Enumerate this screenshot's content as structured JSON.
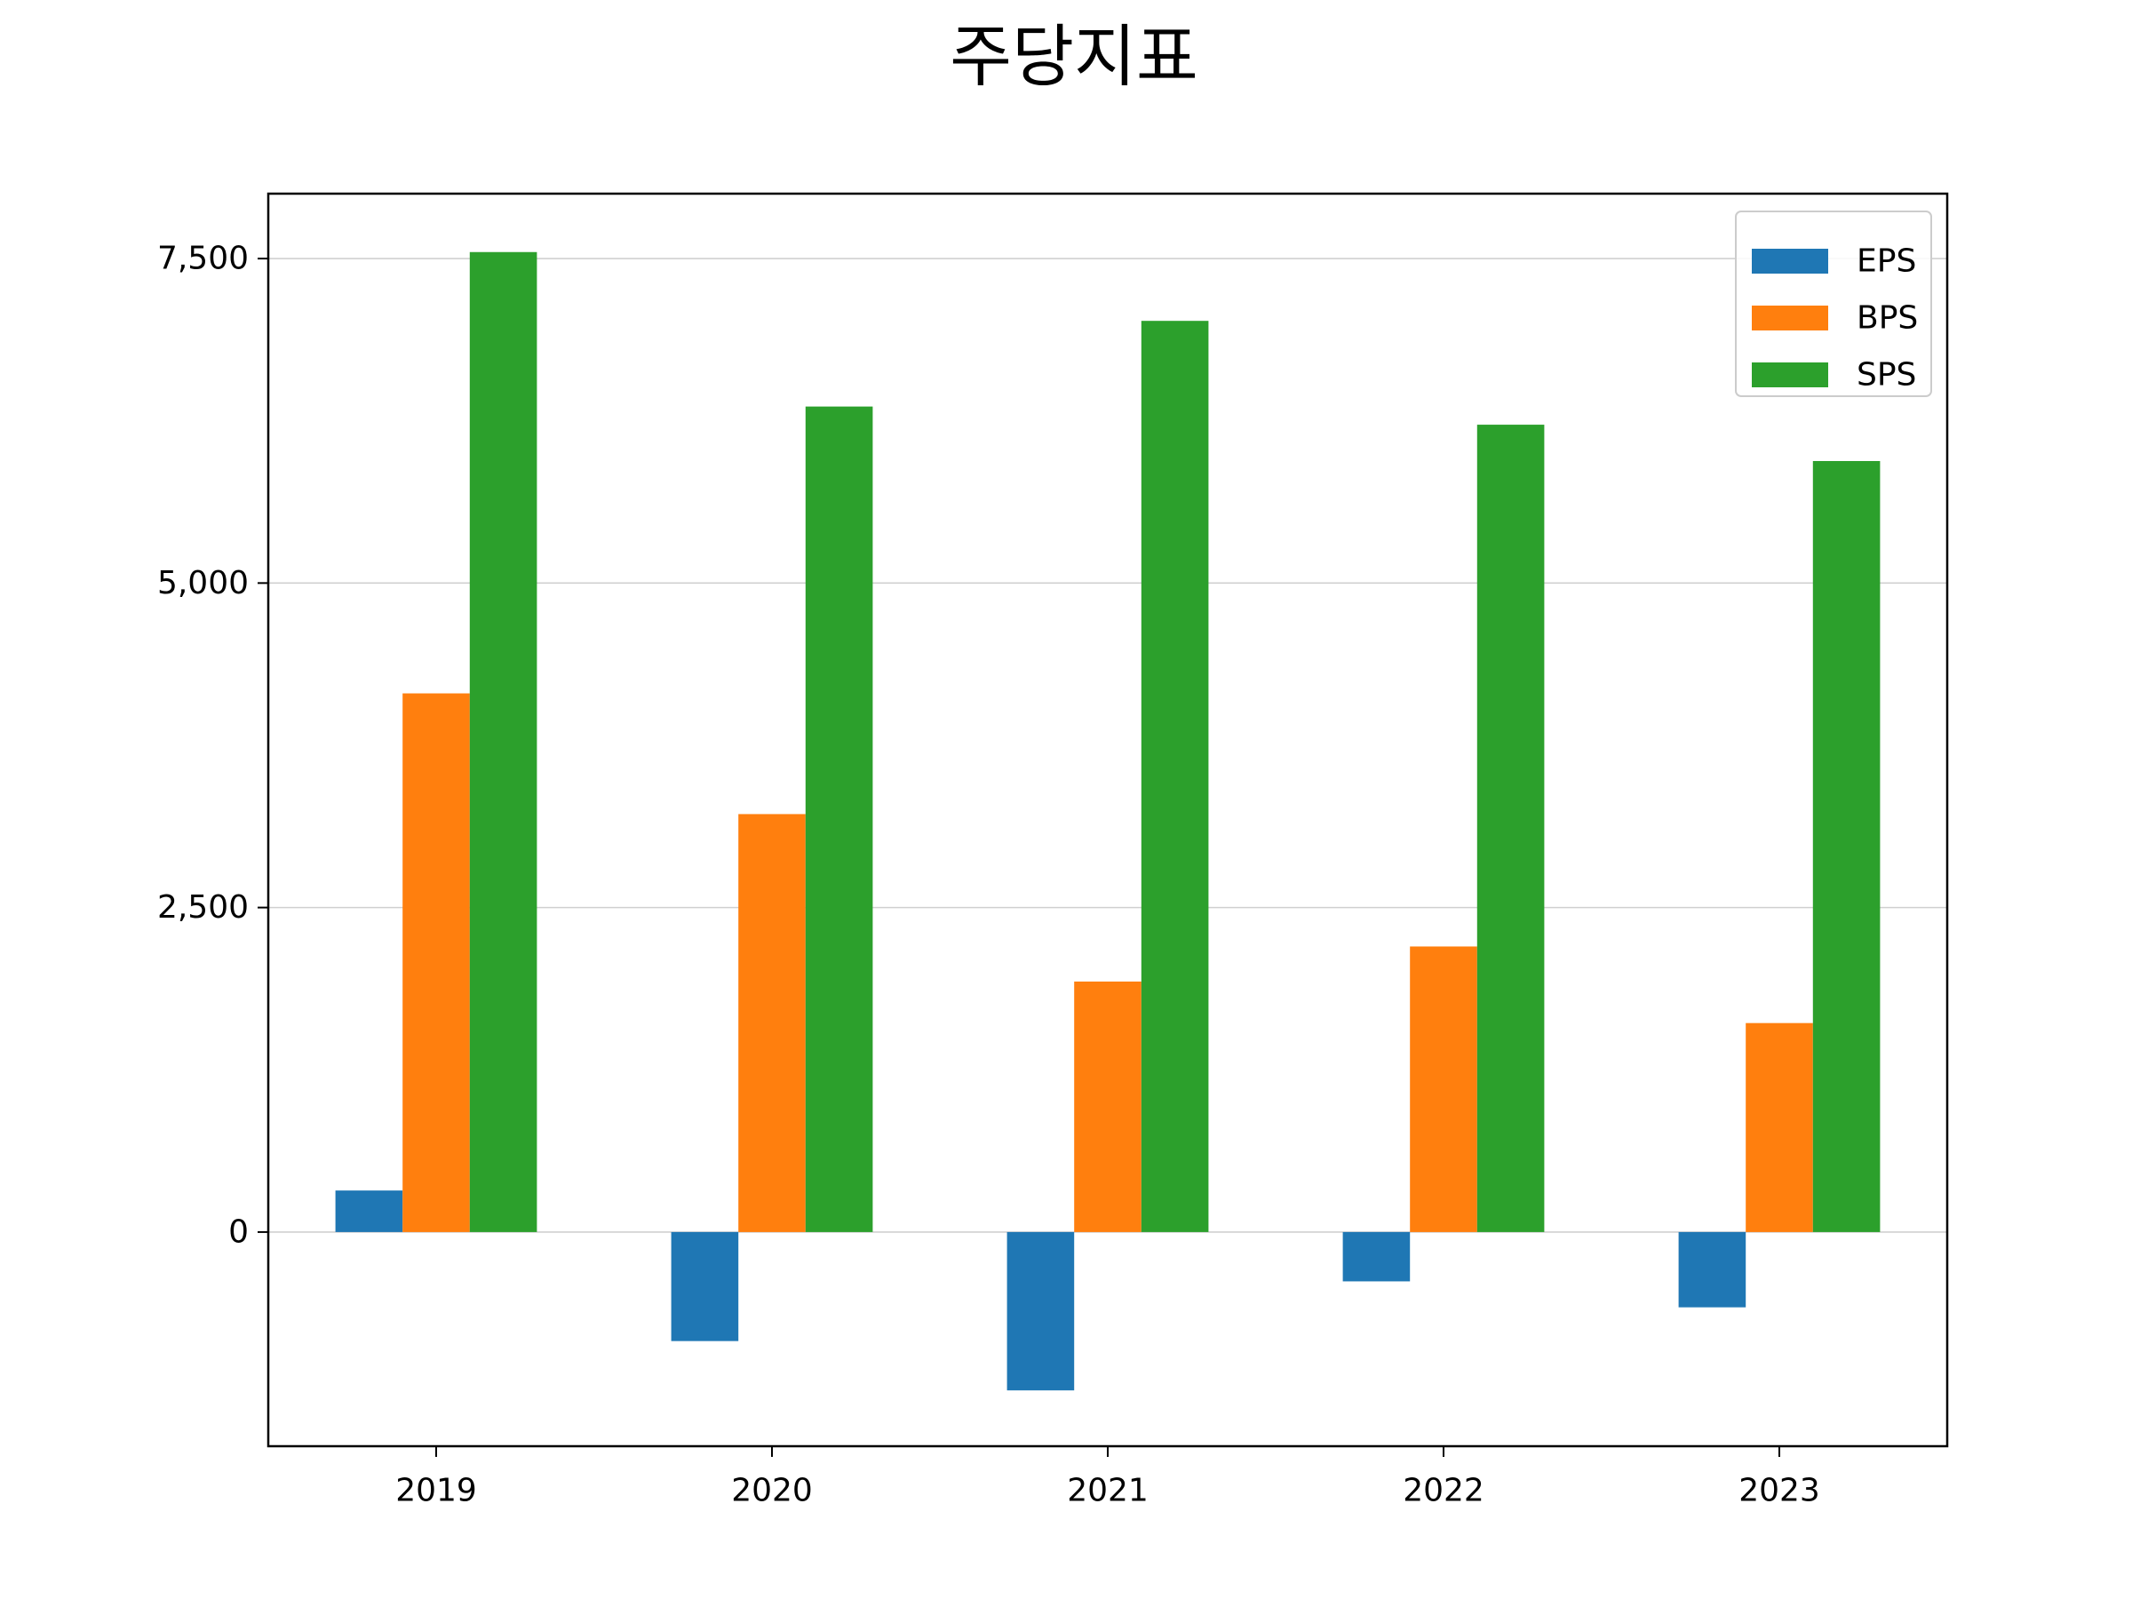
{
  "chart_data": {
    "type": "bar",
    "title": "주당지표",
    "xlabel": "",
    "ylabel": "",
    "categories": [
      "2019",
      "2020",
      "2021",
      "2022",
      "2023"
    ],
    "series": [
      {
        "name": "EPS",
        "color": "#1f77b4",
        "values": [
          320,
          -840,
          -1220,
          -380,
          -580
        ]
      },
      {
        "name": "BPS",
        "color": "#ff7f0e",
        "values": [
          4150,
          3220,
          1930,
          2200,
          1610
        ]
      },
      {
        "name": "SPS",
        "color": "#2ca02c",
        "values": [
          7550,
          6360,
          7020,
          6220,
          5940
        ]
      }
    ],
    "ylim": [
      -1650,
      8000
    ],
    "yticks": [
      0,
      2500,
      5000,
      7500
    ],
    "ytick_labels": [
      "0",
      "2,500",
      "5,000",
      "7,500"
    ],
    "grid": "horizontal",
    "legend": "top-right"
  }
}
